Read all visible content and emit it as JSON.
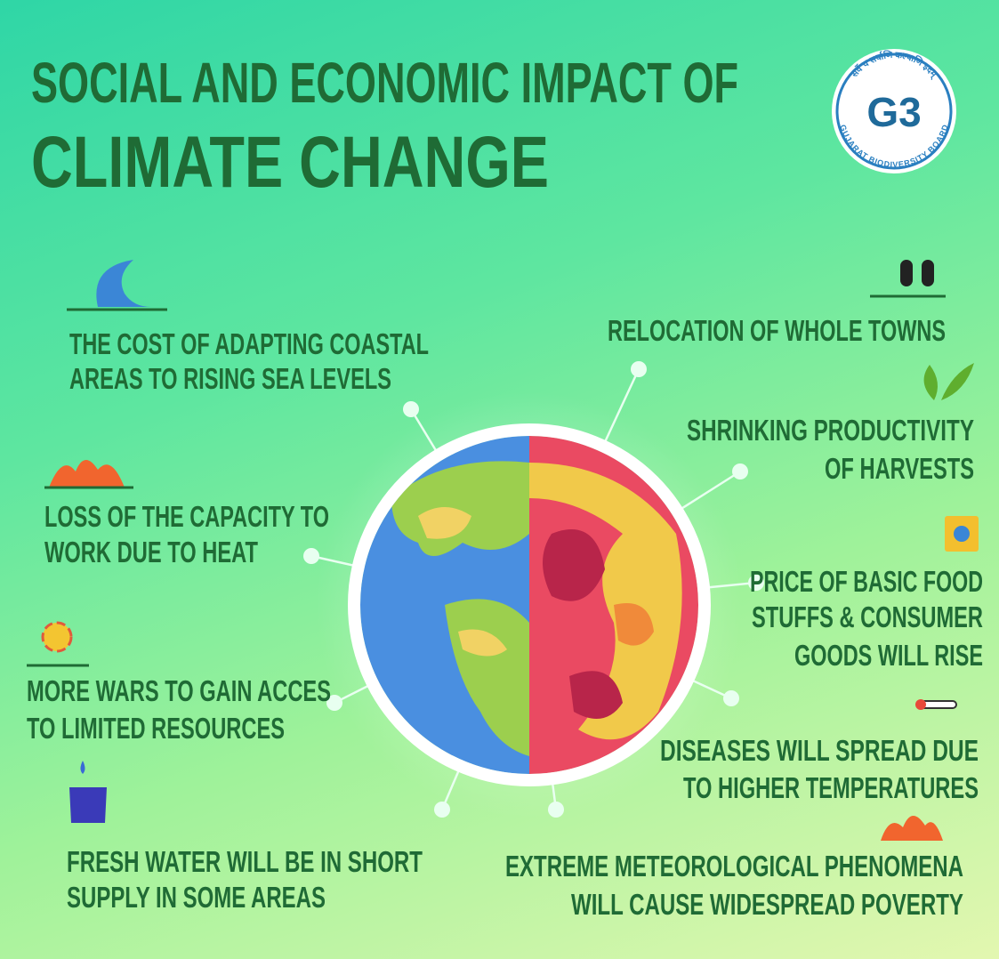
{
  "header": {
    "title_line1": "SOCIAL AND ECONOMIC IMPACT OF",
    "title_line2": "CLIMATE CHANGE"
  },
  "logo": {
    "initials": "G3",
    "motto": "सर्वे च सर्वाणि कल्याणि इदम्",
    "ring_text": "GUJARAT BIODIVERSITY BOARD"
  },
  "items": {
    "left": [
      {
        "lines": [
          "THE COST OF ADAPTING COASTAL",
          "AREAS TO RISING SEA LEVELS"
        ]
      },
      {
        "lines": [
          "LOSS OF THE CAPACITY TO",
          "WORK DUE TO HEAT"
        ]
      },
      {
        "lines": [
          "MORE WARS TO GAIN ACCES",
          "TO LIMITED RESOURCES"
        ]
      },
      {
        "lines": [
          "FRESH WATER WILL BE IN SHORT",
          "SUPPLY IN SOME AREAS"
        ]
      }
    ],
    "right": [
      {
        "lines": [
          "RELOCATION OF WHOLE TOWNS"
        ]
      },
      {
        "lines": [
          "SHRINKING PRODUCTIVITY",
          "OF HARVESTS"
        ]
      },
      {
        "lines": [
          "PRICE OF BASIC FOOD",
          "STUFFS & CONSUMER",
          "GOODS WILL RISE"
        ]
      },
      {
        "lines": [
          "DISEASES WILL SPREAD DUE",
          "TO HIGHER TEMPERATURES"
        ]
      },
      {
        "lines": [
          "EXTREME METEOROLOGICAL PHENOMENA",
          "WILL CAUSE WIDESPREAD POVERTY"
        ]
      }
    ]
  }
}
